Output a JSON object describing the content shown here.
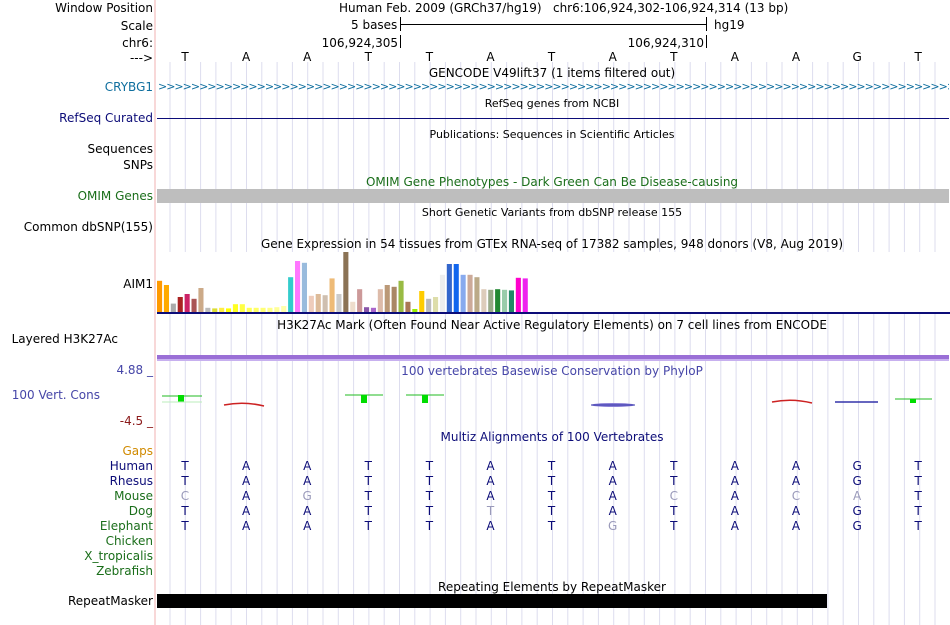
{
  "colors": {
    "gene_blue": "#0e6e9e",
    "refseq_navy": "#0c0c78",
    "omim_green": "#1a6e1a",
    "omim_bar": "#bebebe",
    "cons_blue": "#4646a8",
    "cons_dark": "#8b1a1a",
    "gaps_orange": "#d08a00",
    "species_navy": "#0c0c78",
    "species_green": "#1a6e1a",
    "h3k_purple": "#9a6fd6"
  },
  "ruler": {
    "labels": {
      "window_position": "Window Position",
      "scale": "Scale",
      "chrom": "chr6:",
      "arrow": "--->"
    },
    "assembly": "Human Feb. 2009 (GRCh37/hg19)",
    "position": "chr6:106,924,302-106,924,314 (13 bp)",
    "scale_text": "5 bases",
    "db": "hg19",
    "coord_left": "106,924,305",
    "coord_right": "106,924,310",
    "sequence": [
      "T",
      "A",
      "A",
      "T",
      "T",
      "A",
      "T",
      "A",
      "T",
      "A",
      "A",
      "G",
      "T"
    ]
  },
  "tracks": {
    "gencode": {
      "title": "GENCODE V49lift37 (1 items filtered out)",
      "gene": "CRYBG1"
    },
    "refseq": {
      "title": "RefSeq genes from NCBI",
      "label": "RefSeq Curated"
    },
    "publications": {
      "title": "Publications: Sequences in Scientific Articles",
      "label1": "Sequences",
      "label2": "SNPs"
    },
    "omim": {
      "title": "OMIM Gene Phenotypes - Dark Green Can Be Disease-causing",
      "label": "OMIM Genes"
    },
    "dbsnp": {
      "title": "Short Genetic Variants from dbSNP release 155",
      "label": "Common dbSNP(155)"
    },
    "gtex": {
      "title": "Gene Expression in 54 tissues from GTEx RNA-seq of 17382 samples, 948 donors (V8, Aug 2019)",
      "label": "AIM1",
      "values": [
        0.52,
        0.45,
        0.14,
        0.25,
        0.3,
        0.22,
        0.4,
        0.07,
        0.06,
        0.07,
        0.06,
        0.13,
        0.13,
        0.07,
        0.07,
        0.07,
        0.07,
        0.08,
        0.1,
        0.58,
        0.85,
        0.82,
        0.27,
        0.3,
        0.28,
        0.56,
        0.3,
        1.0,
        0.17,
        0.38,
        0.08,
        0.07,
        0.38,
        0.45,
        0.42,
        0.52,
        0.17,
        0.05,
        0.35,
        0.22,
        0.25,
        0.62,
        0.8,
        0.8,
        0.62,
        0.62,
        0.58,
        0.38,
        0.37,
        0.38,
        0.37,
        0.36,
        0.57,
        0.56
      ],
      "colors": [
        "#ff9900",
        "#ffaa00",
        "#aaaaaa",
        "#aa2222",
        "#cc2266",
        "#aa5555",
        "#ccaa88",
        "#bbbbbb",
        "#dddd33",
        "#ffee44",
        "#ffff00",
        "#ffff22",
        "#ffff44",
        "#ffff55",
        "#ffff66",
        "#ffff77",
        "#ffff88",
        "#ffff99",
        "#ffffaa",
        "#33cccc",
        "#ff77ff",
        "#99bbdd",
        "#eeccbb",
        "#ddbb99",
        "#cfbfaf",
        "#eebb77",
        "#cccccc",
        "#8b7355",
        "#eeddcc",
        "#cc9999",
        "#8855aa",
        "#aa66cc",
        "#ddbbaa",
        "#bb9977",
        "#aa8866",
        "#99bb44",
        "#aa7755",
        "#99ee00",
        "#ffcc00",
        "#bbbbbb",
        "#ddddaa",
        "#eeeeee",
        "#3366cc",
        "#1166ee",
        "#88aaee",
        "#ccaa99",
        "#bbaa88",
        "#ddccbb",
        "#99aa88",
        "#228833",
        "#99ccaa",
        "#228866",
        "#ff00cc",
        "#ee22ee"
      ]
    },
    "h3k27ac": {
      "title": "H3K27Ac Mark (Often Found Near Active Regulatory Elements) on 7 cell lines from ENCODE",
      "label": "Layered H3K27Ac"
    },
    "cons": {
      "title": "100 vertebrates Basewise Conservation by PhyloP",
      "label": "100 Vert. Cons",
      "max": "4.88 _",
      "min": "-4.5 _"
    },
    "multiz": {
      "title": "Multiz Alignments of 100 Vertebrates",
      "gaps_label": "Gaps",
      "species": [
        {
          "name": "Human",
          "bases": [
            "T",
            "A",
            "A",
            "T",
            "T",
            "A",
            "T",
            "A",
            "T",
            "A",
            "A",
            "G",
            "T"
          ]
        },
        {
          "name": "Rhesus",
          "bases": [
            "T",
            "A",
            "A",
            "T",
            "T",
            "A",
            "T",
            "A",
            "T",
            "A",
            "A",
            "G",
            "T"
          ]
        },
        {
          "name": "Mouse",
          "bases": [
            "C",
            "A",
            "G",
            "T",
            "T",
            "A",
            "T",
            "A",
            "C",
            "A",
            "C",
            "A",
            "T"
          ]
        },
        {
          "name": "Dog",
          "bases": [
            "T",
            "A",
            "A",
            "T",
            "T",
            "T",
            "T",
            "A",
            "T",
            "A",
            "A",
            "G",
            "T"
          ]
        },
        {
          "name": "Elephant",
          "bases": [
            "T",
            "A",
            "A",
            "T",
            "T",
            "A",
            "T",
            "G",
            "T",
            "A",
            "A",
            "G",
            "T"
          ]
        },
        {
          "name": "Chicken",
          "bases": []
        },
        {
          "name": "X_tropicalis",
          "bases": []
        },
        {
          "name": "Zebrafish",
          "bases": []
        }
      ]
    },
    "repeatmasker": {
      "title": "Repeating Elements by RepeatMasker",
      "label": "RepeatMasker"
    }
  }
}
